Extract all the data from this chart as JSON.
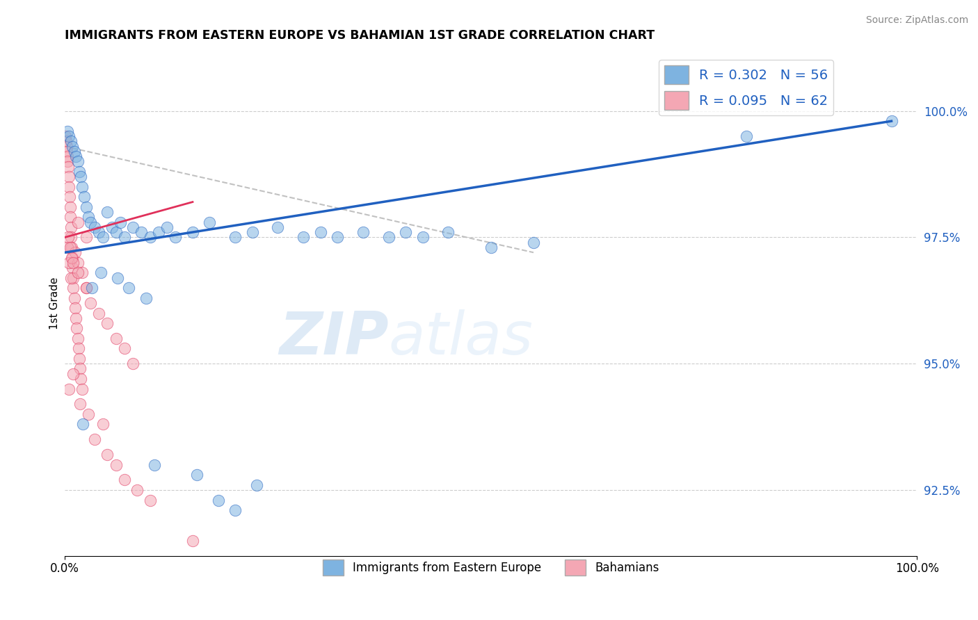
{
  "title": "IMMIGRANTS FROM EASTERN EUROPE VS BAHAMIAN 1ST GRADE CORRELATION CHART",
  "source": "Source: ZipAtlas.com",
  "xlabel": "",
  "ylabel": "1st Grade",
  "xlim": [
    0.0,
    100.0
  ],
  "ylim": [
    91.2,
    101.2
  ],
  "yticks": [
    92.5,
    95.0,
    97.5,
    100.0
  ],
  "xticks": [
    0.0,
    100.0
  ],
  "xtick_labels": [
    "0.0%",
    "100.0%"
  ],
  "ytick_labels": [
    "92.5%",
    "95.0%",
    "97.5%",
    "100.0%"
  ],
  "legend_blue_r": "R = 0.302",
  "legend_blue_n": "N = 56",
  "legend_pink_r": "R = 0.095",
  "legend_pink_n": "N = 62",
  "blue_color": "#7EB3E0",
  "pink_color": "#F4A7B4",
  "blue_line_color": "#2060C0",
  "pink_line_color": "#E0305A",
  "gray_dash_color": "#BBBBBB",
  "blue_scatter": [
    [
      0.3,
      99.6
    ],
    [
      0.5,
      99.5
    ],
    [
      0.7,
      99.4
    ],
    [
      0.9,
      99.3
    ],
    [
      1.1,
      99.2
    ],
    [
      1.3,
      99.1
    ],
    [
      1.5,
      99.0
    ],
    [
      1.7,
      98.8
    ],
    [
      1.9,
      98.7
    ],
    [
      2.0,
      98.5
    ],
    [
      2.3,
      98.3
    ],
    [
      2.5,
      98.1
    ],
    [
      2.8,
      97.9
    ],
    [
      3.0,
      97.8
    ],
    [
      3.5,
      97.7
    ],
    [
      4.0,
      97.6
    ],
    [
      4.5,
      97.5
    ],
    [
      5.0,
      98.0
    ],
    [
      5.5,
      97.7
    ],
    [
      6.0,
      97.6
    ],
    [
      6.5,
      97.8
    ],
    [
      7.0,
      97.5
    ],
    [
      8.0,
      97.7
    ],
    [
      9.0,
      97.6
    ],
    [
      10.0,
      97.5
    ],
    [
      11.0,
      97.6
    ],
    [
      12.0,
      97.7
    ],
    [
      13.0,
      97.5
    ],
    [
      15.0,
      97.6
    ],
    [
      17.0,
      97.8
    ],
    [
      20.0,
      97.5
    ],
    [
      22.0,
      97.6
    ],
    [
      25.0,
      97.7
    ],
    [
      28.0,
      97.5
    ],
    [
      30.0,
      97.6
    ],
    [
      32.0,
      97.5
    ],
    [
      35.0,
      97.6
    ],
    [
      38.0,
      97.5
    ],
    [
      40.0,
      97.6
    ],
    [
      42.0,
      97.5
    ],
    [
      45.0,
      97.6
    ],
    [
      50.0,
      97.3
    ],
    [
      55.0,
      97.4
    ],
    [
      3.2,
      96.5
    ],
    [
      4.2,
      96.8
    ],
    [
      6.2,
      96.7
    ],
    [
      7.5,
      96.5
    ],
    [
      9.5,
      96.3
    ],
    [
      2.1,
      93.8
    ],
    [
      10.5,
      93.0
    ],
    [
      15.5,
      92.8
    ],
    [
      22.5,
      92.6
    ],
    [
      18.0,
      92.3
    ],
    [
      20.0,
      92.1
    ],
    [
      97.0,
      99.8
    ],
    [
      80.0,
      99.5
    ]
  ],
  "pink_scatter": [
    [
      0.1,
      99.5
    ],
    [
      0.15,
      99.4
    ],
    [
      0.2,
      99.3
    ],
    [
      0.25,
      99.2
    ],
    [
      0.3,
      99.1
    ],
    [
      0.35,
      99.0
    ],
    [
      0.4,
      98.9
    ],
    [
      0.45,
      98.7
    ],
    [
      0.5,
      98.5
    ],
    [
      0.55,
      98.3
    ],
    [
      0.6,
      98.1
    ],
    [
      0.65,
      97.9
    ],
    [
      0.7,
      97.7
    ],
    [
      0.75,
      97.5
    ],
    [
      0.8,
      97.3
    ],
    [
      0.85,
      97.1
    ],
    [
      0.9,
      96.9
    ],
    [
      0.95,
      96.7
    ],
    [
      1.0,
      96.5
    ],
    [
      1.1,
      96.3
    ],
    [
      1.2,
      96.1
    ],
    [
      1.3,
      95.9
    ],
    [
      1.4,
      95.7
    ],
    [
      1.5,
      95.5
    ],
    [
      1.6,
      95.3
    ],
    [
      1.7,
      95.1
    ],
    [
      1.8,
      94.9
    ],
    [
      1.9,
      94.7
    ],
    [
      2.0,
      94.5
    ],
    [
      0.3,
      97.3
    ],
    [
      0.5,
      97.0
    ],
    [
      0.7,
      96.7
    ],
    [
      1.2,
      97.2
    ],
    [
      1.5,
      97.0
    ],
    [
      2.0,
      96.8
    ],
    [
      2.5,
      96.5
    ],
    [
      3.0,
      96.2
    ],
    [
      4.0,
      96.0
    ],
    [
      5.0,
      95.8
    ],
    [
      6.0,
      95.5
    ],
    [
      7.0,
      95.3
    ],
    [
      8.0,
      95.0
    ],
    [
      0.4,
      97.5
    ],
    [
      0.6,
      97.3
    ],
    [
      0.8,
      97.1
    ],
    [
      1.0,
      97.0
    ],
    [
      1.5,
      96.8
    ],
    [
      2.5,
      96.5
    ],
    [
      1.8,
      94.2
    ],
    [
      2.8,
      94.0
    ],
    [
      4.5,
      93.8
    ],
    [
      3.5,
      93.5
    ],
    [
      5.0,
      93.2
    ],
    [
      6.0,
      93.0
    ],
    [
      7.0,
      92.7
    ],
    [
      8.5,
      92.5
    ],
    [
      10.0,
      92.3
    ],
    [
      0.5,
      94.5
    ],
    [
      1.0,
      94.8
    ],
    [
      15.0,
      91.5
    ],
    [
      1.5,
      97.8
    ],
    [
      2.5,
      97.5
    ]
  ],
  "blue_reg_x0": 0.0,
  "blue_reg_y0": 97.2,
  "blue_reg_x1": 97.0,
  "blue_reg_y1": 99.8,
  "pink_reg_x0": 0.0,
  "pink_reg_y0": 97.5,
  "pink_reg_x1": 15.0,
  "pink_reg_y1": 98.2,
  "gray_reg_x0": 0.0,
  "gray_reg_y0": 99.3,
  "gray_reg_x1": 55.0,
  "gray_reg_y1": 97.2
}
